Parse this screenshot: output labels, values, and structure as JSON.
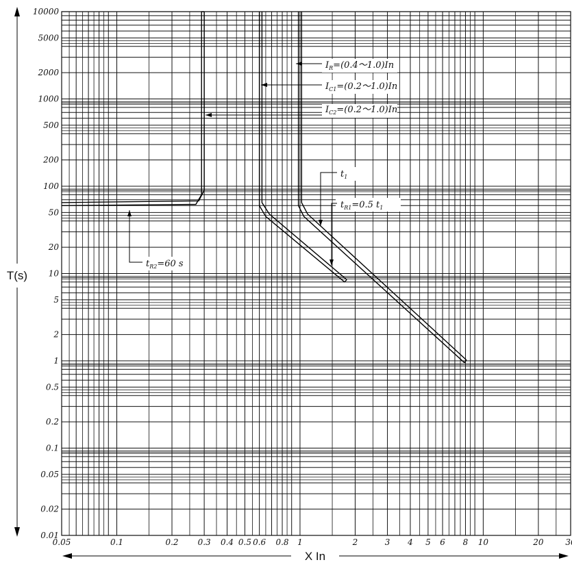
{
  "chart_data": {
    "type": "line",
    "title": "",
    "xlabel": "X In",
    "ylabel": "T(s)",
    "x_scale": "log",
    "y_scale": "log",
    "xlim": [
      0.05,
      30
    ],
    "ylim": [
      0.01,
      10000
    ],
    "grid": true,
    "x_tick_labels": [
      {
        "value": 0.05,
        "label": "0.05"
      },
      {
        "value": 0.1,
        "label": "0.1"
      },
      {
        "value": 0.2,
        "label": "0.2"
      },
      {
        "value": 0.3,
        "label": "0.3"
      },
      {
        "value": 0.4,
        "label": "0.4"
      },
      {
        "value": 0.5,
        "label": "0.5"
      },
      {
        "value": 0.6,
        "label": "0.6"
      },
      {
        "value": 0.8,
        "label": "0.8"
      },
      {
        "value": 1,
        "label": "1"
      },
      {
        "value": 2,
        "label": "2"
      },
      {
        "value": 3,
        "label": "3"
      },
      {
        "value": 4,
        "label": "4"
      },
      {
        "value": 5,
        "label": "5"
      },
      {
        "value": 6,
        "label": "6"
      },
      {
        "value": 8,
        "label": "8"
      },
      {
        "value": 10,
        "label": "10"
      },
      {
        "value": 20,
        "label": "20"
      },
      {
        "value": 30,
        "label": "30"
      }
    ],
    "y_tick_labels": [
      {
        "value": 10000,
        "label": "10000"
      },
      {
        "value": 5000,
        "label": "5000"
      },
      {
        "value": 2000,
        "label": "2000"
      },
      {
        "value": 1000,
        "label": "1000"
      },
      {
        "value": 500,
        "label": "500"
      },
      {
        "value": 200,
        "label": "200"
      },
      {
        "value": 100,
        "label": "100"
      },
      {
        "value": 50,
        "label": "50"
      },
      {
        "value": 20,
        "label": "20"
      },
      {
        "value": 10,
        "label": "10"
      },
      {
        "value": 5,
        "label": "5"
      },
      {
        "value": 2,
        "label": "2"
      },
      {
        "value": 1,
        "label": "1"
      },
      {
        "value": 0.5,
        "label": "0.5"
      },
      {
        "value": 0.2,
        "label": "0.2"
      },
      {
        "value": 0.1,
        "label": "0.1"
      },
      {
        "value": 0.05,
        "label": "0.05"
      },
      {
        "value": 0.02,
        "label": "0.02"
      },
      {
        "value": 0.01,
        "label": "0.01"
      }
    ],
    "series": [
      {
        "points": [
          [
            0.05,
            60
          ],
          [
            0.27,
            62
          ],
          [
            0.29,
            80
          ],
          [
            0.29,
            10000
          ]
        ],
        "parallel": [
          [
            0.05,
            65
          ],
          [
            0.28,
            68
          ],
          [
            0.3,
            90
          ],
          [
            0.3,
            10000
          ]
        ]
      },
      {
        "points": [
          [
            0.6,
            10000
          ],
          [
            0.6,
            60
          ],
          [
            0.65,
            45
          ],
          [
            1.75,
            8
          ]
        ],
        "parallel": [
          [
            0.62,
            10000
          ],
          [
            0.62,
            65
          ],
          [
            0.68,
            48
          ],
          [
            1.8,
            8.5
          ]
        ]
      },
      {
        "points": [
          [
            0.98,
            10000
          ],
          [
            0.98,
            60
          ],
          [
            1.05,
            45
          ],
          [
            7.9,
            0.95
          ]
        ],
        "parallel": [
          [
            1.02,
            10000
          ],
          [
            1.02,
            65
          ],
          [
            1.1,
            48
          ],
          [
            8.1,
            1.02
          ]
        ]
      }
    ],
    "annotations": [
      {
        "main": "I",
        "sub": "R",
        "text": "=(0.4～1.0)In"
      },
      {
        "main": "I",
        "sub": "C1",
        "text": "=(0.2～1.0)In"
      },
      {
        "main": "I",
        "sub": "C2",
        "text": "=(0.2～1.0)In"
      },
      {
        "main": "t",
        "sub": "1",
        "text": ""
      },
      {
        "main": "t",
        "sub": "R1",
        "text": "=0.5 t",
        "tail_sub": "1"
      },
      {
        "main": "t",
        "sub": "R2",
        "text": "=60 s"
      }
    ]
  }
}
